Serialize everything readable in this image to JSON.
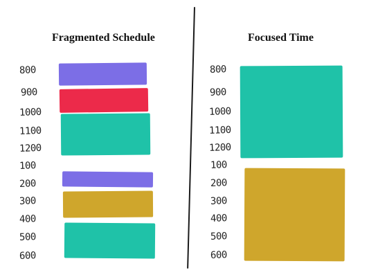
{
  "left": {
    "title": "Fragmented Schedule",
    "labels": [
      "800",
      "900",
      "1000",
      "1100",
      "1200",
      "100",
      "200",
      "300",
      "400",
      "500",
      "600"
    ]
  },
  "right": {
    "title": "Focused Time",
    "labels": [
      "800",
      "900",
      "1000",
      "1100",
      "1200",
      "100",
      "200",
      "300",
      "400",
      "500",
      "600"
    ]
  },
  "colors": {
    "purple": "#7c6ee6",
    "red": "#ec2a4a",
    "teal": "#1fc2a8",
    "gold": "#cfa62c"
  }
}
